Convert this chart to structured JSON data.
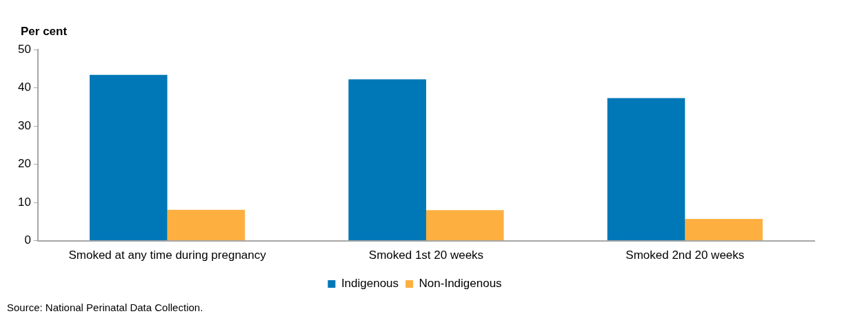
{
  "chart_data": {
    "type": "bar",
    "ylabel": "Per cent",
    "categories": [
      "Smoked at any time during pregnancy",
      "Smoked 1st 20 weeks",
      "Smoked 2nd 20 weeks"
    ],
    "series": [
      {
        "name": "Indigenous",
        "color": "#0077b6",
        "values": [
          43.4,
          42.2,
          37.3
        ]
      },
      {
        "name": "Non-Indigenous",
        "color": "#fdb040",
        "values": [
          8.1,
          8.0,
          5.7
        ]
      }
    ],
    "ylim": [
      0,
      50
    ],
    "yticks": [
      0,
      10,
      20,
      30,
      40,
      50
    ],
    "grid": false,
    "legend": "bottom",
    "annotations": [
      "Source: National Perinatal Data Collection."
    ]
  }
}
